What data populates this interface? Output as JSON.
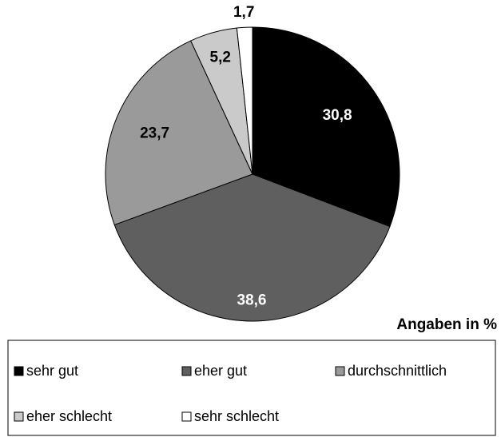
{
  "chart_data": {
    "type": "pie",
    "annotation": "Angaben in %",
    "categories": [
      "sehr gut",
      "eher gut",
      "durchschnittlich",
      "eher schlecht",
      "sehr schlecht"
    ],
    "values": [
      30.8,
      38.6,
      23.7,
      5.2,
      1.7
    ],
    "value_labels": [
      "30,8",
      "38,6",
      "23,7",
      "5,2",
      "1,7"
    ],
    "colors": [
      "#000000",
      "#5f5f5f",
      "#9a9a9a",
      "#cacaca",
      "#ffffff"
    ],
    "legend": "bottom"
  }
}
